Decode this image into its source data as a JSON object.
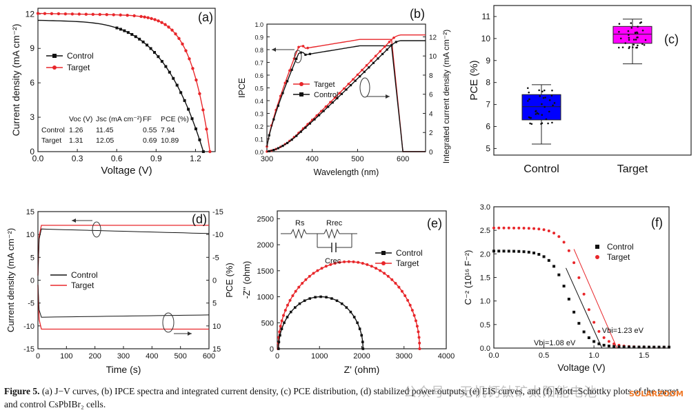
{
  "caption": {
    "label": "Figure 5.",
    "text": " (a) J−V curves, (b) IPCE spectra and integrated current density, (c) PCE distribution, (d) stabilized power outputs, (e) EIS curves, and (f) Mott−Schottky plots of the target and control CsPbIBr₂ cells."
  },
  "watermark": "公众号 · 无机钙钛矿太阳能电池",
  "watermark2": "SOLARZOOM",
  "colors": {
    "control": "#111111",
    "target": "#e8262a",
    "box_control": "#0000ff",
    "box_target": "#ff00ff"
  },
  "chart_data": [
    {
      "id": "a",
      "panel_label": "(a)",
      "type": "line",
      "xlabel": "Voltage (V)",
      "ylabel": "Current density (mA cm⁻²)",
      "xlim": [
        0,
        1.35
      ],
      "ylim": [
        0,
        12.5
      ],
      "xticks": [
        "0.0",
        "0.3",
        "0.6",
        "0.9",
        "1.2"
      ],
      "xtick_values": [
        0,
        0.3,
        0.6,
        0.9,
        1.2
      ],
      "yticks": [
        "0",
        "3",
        "6",
        "9",
        "12"
      ],
      "ytick_values": [
        0,
        3,
        6,
        9,
        12
      ],
      "legend": "upper-left",
      "series": [
        {
          "name": "Control",
          "voc": 1.26,
          "jsc": 11.45,
          "ff": 0.55
        },
        {
          "name": "Target",
          "voc": 1.31,
          "jsc": 12.05,
          "ff": 0.69
        }
      ],
      "table": {
        "header": [
          "",
          "Voc (V)",
          "Jsc (mA cm⁻²)",
          "FF",
          "PCE (%)"
        ],
        "rows": [
          [
            "Control",
            "1.26",
            "11.45",
            "0.55",
            "7.94"
          ],
          [
            "Target",
            "1.31",
            "12.05",
            "0.69",
            "10.89"
          ]
        ]
      }
    },
    {
      "id": "b",
      "panel_label": "(b)",
      "type": "line",
      "xlabel": "Wavelength (nm)",
      "ylabel": "IPCE",
      "y2label": "Integrated current density (mA cm⁻²)",
      "xlim": [
        300,
        650
      ],
      "ylim": [
        0,
        1.0
      ],
      "y2lim": [
        0,
        13.33
      ],
      "xticks": [
        "300",
        "400",
        "500",
        "600"
      ],
      "xtick_values": [
        300,
        400,
        500,
        600
      ],
      "yticks": [
        "0.0",
        "0.1",
        "0.2",
        "0.3",
        "0.4",
        "0.5",
        "0.6",
        "0.7",
        "0.8",
        "0.9",
        "1.0"
      ],
      "ytick_values": [
        0,
        0.1,
        0.2,
        0.3,
        0.4,
        0.5,
        0.6,
        0.7,
        0.8,
        0.9,
        1.0
      ],
      "y2ticks": [
        "0",
        "2",
        "4",
        "6",
        "8",
        "10",
        "12"
      ],
      "y2tick_values": [
        0,
        2,
        4,
        6,
        8,
        10,
        12
      ],
      "legend": "center-left",
      "series": [
        {
          "name": "Target",
          "ipce_plateau": 0.87,
          "integrated_max": 12.2
        },
        {
          "name": "Control",
          "ipce_plateau": 0.82,
          "integrated_max": 11.6
        }
      ]
    },
    {
      "id": "c",
      "panel_label": "(c)",
      "type": "box",
      "ylabel": "PCE (%)",
      "ylim": [
        4.7,
        11.5
      ],
      "yticks": [
        "5",
        "6",
        "7",
        "8",
        "9",
        "10",
        "11"
      ],
      "ytick_values": [
        5,
        6,
        7,
        8,
        9,
        10,
        11
      ],
      "categories": [
        "Control",
        "Target"
      ],
      "boxes": [
        {
          "min": 5.2,
          "q1": 6.3,
          "median": 6.9,
          "q3": 7.45,
          "max": 7.9
        },
        {
          "min": 8.85,
          "q1": 9.78,
          "median": 10.2,
          "q3": 10.55,
          "max": 10.88
        }
      ]
    },
    {
      "id": "d",
      "panel_label": "(d)",
      "type": "line",
      "xlabel": "Time (s)",
      "ylabel": "Current density (mA cm⁻²)",
      "y2label": "PCE (%)",
      "xlim": [
        0,
        600
      ],
      "ylim": [
        -15,
        15
      ],
      "xticks": [
        "0",
        "100",
        "200",
        "300",
        "400",
        "500",
        "600"
      ],
      "xtick_values": [
        0,
        100,
        200,
        300,
        400,
        500,
        600
      ],
      "yticks": [
        "-15",
        "-10",
        "-5",
        "0",
        "5",
        "10",
        "15"
      ],
      "ytick_values": [
        -15,
        -10,
        -5,
        0,
        5,
        10,
        15
      ],
      "y2ticks": [
        "15",
        "10",
        "5",
        "0",
        "-5",
        "-10",
        "-15"
      ],
      "legend": "center-left",
      "series": [
        {
          "name": "Control",
          "current_start": 11.2,
          "current_end": 10.2,
          "pce_start": 8.1,
          "pce_end": 7.6
        },
        {
          "name": "Target",
          "current_start": 12.0,
          "current_end": 12.0,
          "pce_start": 10.7,
          "pce_end": 10.7
        }
      ]
    },
    {
      "id": "e",
      "panel_label": "(e)",
      "type": "scatter",
      "xlabel": "Z' (ohm)",
      "ylabel": "-Z'' (ohm)",
      "xlim": [
        0,
        4000
      ],
      "ylim": [
        0,
        2650
      ],
      "xticks": [
        "0",
        "1000",
        "2000",
        "3000",
        "4000"
      ],
      "xtick_values": [
        0,
        1000,
        2000,
        3000,
        4000
      ],
      "yticks": [
        "0",
        "500",
        "1000",
        "1500",
        "2000",
        "2500"
      ],
      "ytick_values": [
        0,
        500,
        1000,
        1500,
        2000,
        2500
      ],
      "legend": "center-right",
      "circuit": {
        "rs": "Rs",
        "rrec": "Rrec",
        "crec": "Crec"
      },
      "series": [
        {
          "name": "Control",
          "z_start": 30,
          "z_end": 2030
        },
        {
          "name": "Target",
          "z_start": 20,
          "z_end": 3370
        }
      ]
    },
    {
      "id": "f",
      "panel_label": "(f)",
      "type": "scatter",
      "xlabel": "Voltage (V)",
      "ylabel": "C⁻² (10¹⁶ F⁻²)",
      "xlim": [
        0,
        1.75
      ],
      "ylim": [
        0,
        3.0
      ],
      "xticks": [
        "0.0",
        "0.5",
        "1.0",
        "1.5"
      ],
      "xtick_values": [
        0,
        0.5,
        1.0,
        1.5
      ],
      "yticks": [
        "0.0",
        "0.5",
        "1.0",
        "1.5",
        "2.0",
        "2.5",
        "3.0"
      ],
      "ytick_values": [
        0,
        0.5,
        1.0,
        1.5,
        2.0,
        2.5,
        3.0
      ],
      "legend": "center-right",
      "series": [
        {
          "name": "Control",
          "plateau": 2.04,
          "vbi": 1.08,
          "vbi_label": "Vbi=1.08 eV"
        },
        {
          "name": "Target",
          "plateau": 2.53,
          "vbi": 1.23,
          "vbi_label": "Vbi=1.23 eV"
        }
      ]
    }
  ]
}
